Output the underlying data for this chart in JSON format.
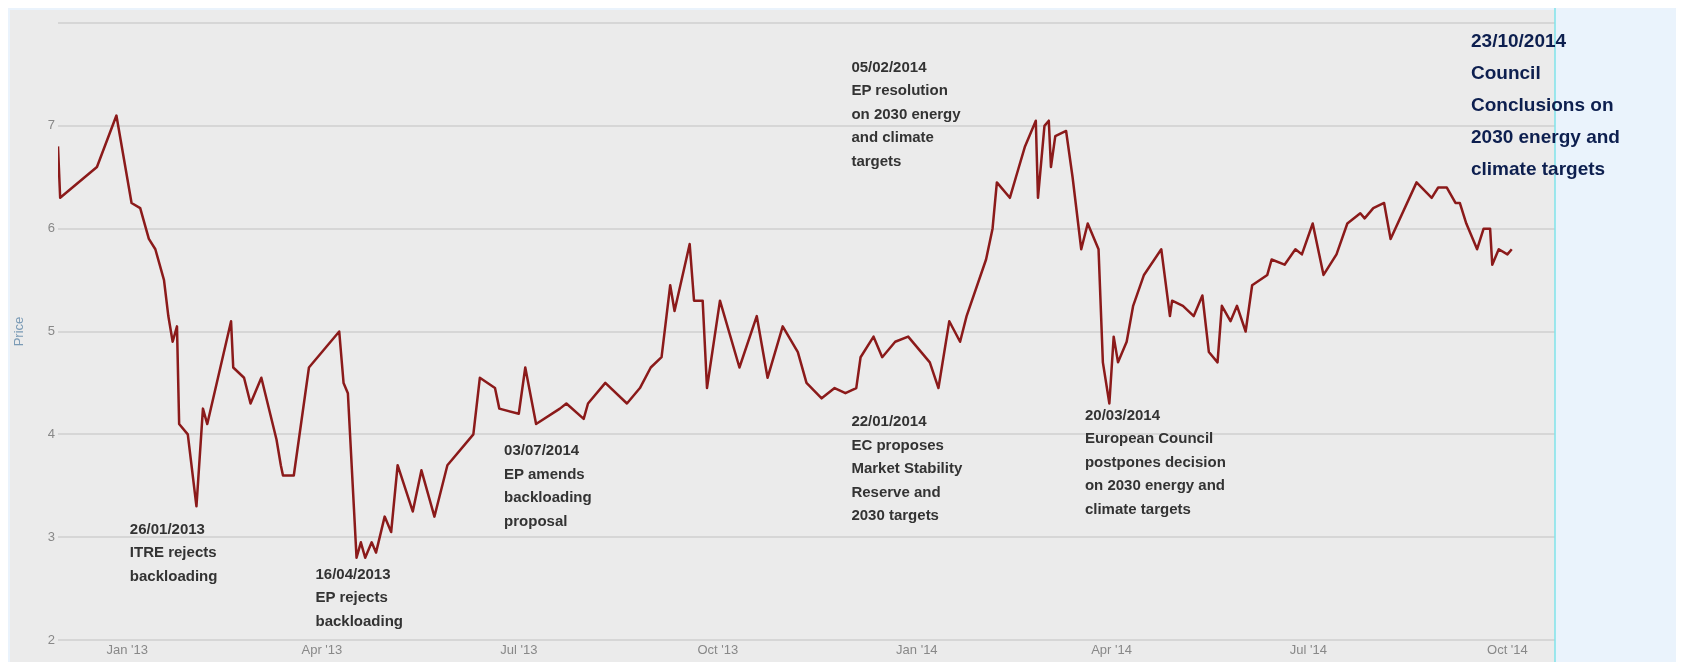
{
  "chart_data": {
    "type": "line",
    "ylabel": "Price",
    "x": [
      "2012-11-30",
      "2012-12-01",
      "2012-12-18",
      "2012-12-27",
      "2013-01-03",
      "2013-01-07",
      "2013-01-11",
      "2013-01-14",
      "2013-01-18",
      "2013-01-20",
      "2013-01-22",
      "2013-01-24",
      "2013-01-25",
      "2013-01-29",
      "2013-02-02",
      "2013-02-05",
      "2013-02-07",
      "2013-02-18",
      "2013-02-19",
      "2013-02-24",
      "2013-02-27",
      "2013-03-04",
      "2013-03-11",
      "2013-03-13",
      "2013-03-14",
      "2013-03-19",
      "2013-03-26",
      "2013-04-09",
      "2013-04-11",
      "2013-04-13",
      "2013-04-17",
      "2013-04-19",
      "2013-04-21",
      "2013-04-24",
      "2013-04-26",
      "2013-04-30",
      "2013-05-03",
      "2013-05-06",
      "2013-05-13",
      "2013-05-17",
      "2013-05-23",
      "2013-05-29",
      "2013-06-10",
      "2013-06-13",
      "2013-06-20",
      "2013-06-22",
      "2013-07-01",
      "2013-07-04",
      "2013-07-09",
      "2013-07-20",
      "2013-07-23",
      "2013-07-31",
      "2013-08-02",
      "2013-08-10",
      "2013-08-20",
      "2013-08-26",
      "2013-08-31",
      "2013-09-05",
      "2013-09-09",
      "2013-09-11",
      "2013-09-18",
      "2013-09-20",
      "2013-09-24",
      "2013-09-26",
      "2013-10-02",
      "2013-10-11",
      "2013-10-19",
      "2013-10-24",
      "2013-10-31",
      "2013-11-07",
      "2013-11-11",
      "2013-11-18",
      "2013-11-24",
      "2013-11-29",
      "2013-12-04",
      "2013-12-06",
      "2013-12-12",
      "2013-12-16",
      "2013-12-22",
      "2013-12-28",
      "2014-01-07",
      "2014-01-11",
      "2014-01-16",
      "2014-01-21",
      "2014-01-24",
      "2014-02-02",
      "2014-02-05",
      "2014-02-07",
      "2014-02-13",
      "2014-02-20",
      "2014-02-25",
      "2014-02-26",
      "2014-03-01",
      "2014-03-03",
      "2014-03-04",
      "2014-03-06",
      "2014-03-11",
      "2014-03-14",
      "2014-03-18",
      "2014-03-21",
      "2014-03-26",
      "2014-03-28",
      "2014-03-31",
      "2014-04-02",
      "2014-04-04",
      "2014-04-08",
      "2014-04-11",
      "2014-04-16",
      "2014-04-24",
      "2014-04-28",
      "2014-04-29",
      "2014-05-04",
      "2014-05-09",
      "2014-05-13",
      "2014-05-16",
      "2014-05-20",
      "2014-05-22",
      "2014-05-26",
      "2014-05-29",
      "2014-06-02",
      "2014-06-05",
      "2014-06-12",
      "2014-06-14",
      "2014-06-20",
      "2014-06-25",
      "2014-06-28",
      "2014-07-03",
      "2014-07-08",
      "2014-07-14",
      "2014-07-19",
      "2014-07-25",
      "2014-07-27",
      "2014-07-31",
      "2014-08-05",
      "2014-08-08",
      "2014-08-20",
      "2014-08-27",
      "2014-08-30",
      "2014-09-03",
      "2014-09-07",
      "2014-09-09",
      "2014-09-12",
      "2014-09-17",
      "2014-09-20",
      "2014-09-23",
      "2014-09-24",
      "2014-09-27",
      "2014-10-01",
      "2014-10-03"
    ],
    "series": [
      {
        "color": "#8b1a1a",
        "values": [
          6.8,
          6.3,
          6.6,
          7.1,
          6.25,
          6.2,
          5.9,
          5.8,
          5.5,
          5.15,
          4.9,
          5.05,
          4.1,
          4.0,
          3.3,
          4.25,
          4.1,
          5.1,
          4.65,
          4.55,
          4.3,
          4.55,
          3.95,
          3.7,
          3.6,
          3.6,
          4.65,
          5.0,
          4.5,
          4.4,
          2.8,
          2.95,
          2.8,
          2.95,
          2.85,
          3.2,
          3.05,
          3.7,
          3.25,
          3.65,
          3.2,
          3.7,
          4.0,
          4.55,
          4.45,
          4.25,
          4.2,
          4.65,
          4.1,
          4.25,
          4.3,
          4.15,
          4.3,
          4.5,
          4.3,
          4.45,
          4.65,
          4.75,
          5.45,
          5.2,
          5.85,
          5.3,
          5.3,
          4.45,
          5.3,
          4.65,
          5.15,
          4.55,
          5.05,
          4.8,
          4.5,
          4.35,
          4.45,
          4.4,
          4.45,
          4.75,
          4.95,
          4.75,
          4.9,
          4.95,
          4.7,
          4.45,
          5.1,
          4.9,
          5.15,
          5.7,
          6.0,
          6.45,
          6.3,
          6.8,
          7.05,
          6.3,
          7.0,
          7.05,
          6.6,
          6.9,
          6.95,
          6.5,
          5.8,
          6.05,
          5.8,
          4.7,
          4.3,
          4.95,
          4.7,
          4.9,
          5.25,
          5.55,
          5.8,
          5.15,
          5.3,
          5.25,
          5.15,
          5.35,
          4.8,
          4.7,
          5.25,
          5.1,
          5.25,
          5.0,
          5.45,
          5.55,
          5.7,
          5.65,
          5.8,
          5.75,
          6.05,
          5.55,
          5.75,
          6.05,
          6.15,
          6.1,
          6.2,
          6.25,
          5.9,
          6.45,
          6.3,
          6.4,
          6.4,
          6.25,
          6.25,
          6.05,
          5.8,
          6.0,
          6.0,
          5.65,
          5.8,
          5.75,
          5.8
        ]
      }
    ],
    "xlim": [
      "2012-11-30",
      "2014-10-23"
    ],
    "xticks": [
      {
        "value": "2013-01-01",
        "label": "Jan '13"
      },
      {
        "value": "2013-04-01",
        "label": "Apr '13"
      },
      {
        "value": "2013-07-01",
        "label": "Jul '13"
      },
      {
        "value": "2013-10-01",
        "label": "Oct '13"
      },
      {
        "value": "2014-01-01",
        "label": "Jan '14"
      },
      {
        "value": "2014-04-01",
        "label": "Apr '14"
      },
      {
        "value": "2014-07-01",
        "label": "Jul '14"
      },
      {
        "value": "2014-10-01",
        "label": "Oct '14"
      }
    ],
    "ylim": [
      2,
      8
    ],
    "yticks": [
      2,
      3,
      4,
      5,
      6,
      7,
      {
        "value": 8,
        "label": null
      }
    ],
    "grid": "y",
    "ref_lines": [
      {
        "axis": "x",
        "value": "2014-10-23",
        "label": "23/10/2014\nCouncil\nConclusions on\n2030 energy and\nclimate targets",
        "color": "#7fe3ea"
      }
    ],
    "annotations": [
      "26/01/2013\nITRE rejects\nbackloading",
      "16/04/2013\nEP rejects\nbackloading",
      "03/07/2014\nEP amends\nbackloading\nproposal",
      "05/02/2014\nEP resolution\non 2030 energy\nand climate\ntargets",
      "22/01/2014\nEC proposes\nMarket Stability\nReserve and\n2030 targets",
      "20/03/2014\nEuropean Council\npostpones decision\non 2030 energy and\nclimate targets"
    ]
  }
}
